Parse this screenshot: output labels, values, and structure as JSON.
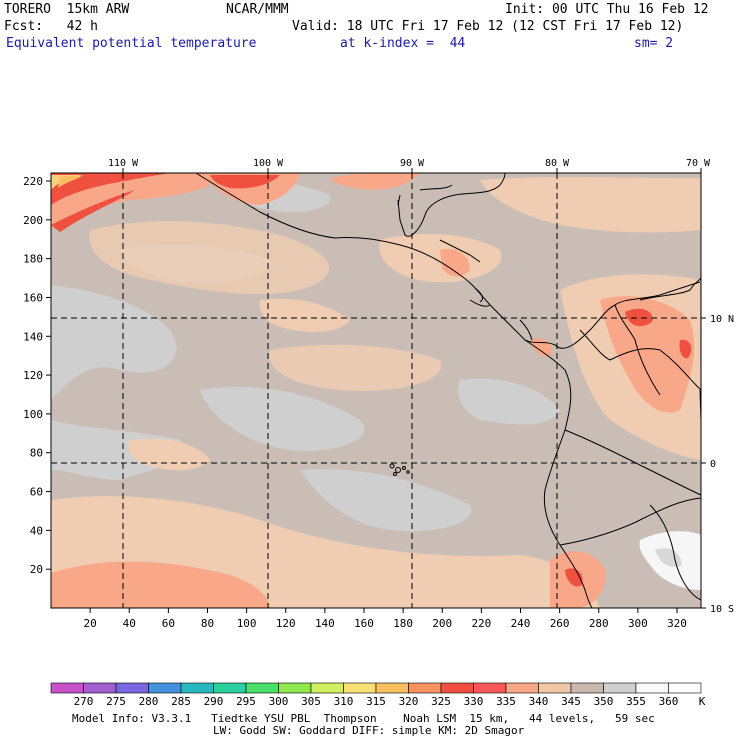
{
  "header": {
    "model": "TORERO  15km ARW",
    "org": "NCAR/MMM",
    "init": "Init: 00 UTC Thu 16 Feb 12",
    "fcst": "Fcst:   42 h",
    "valid": "Valid: 18 UTC Fri 17 Feb 12 (12 CST Fri 17 Feb 12)",
    "field": "Equivalent potential temperature",
    "level": "at k-index =  44",
    "smooth": "sm= 2"
  },
  "top_labels": [
    "110 W",
    "100 W",
    "90 W",
    "80 W",
    "70 W"
  ],
  "right_labels": [
    "10 N",
    "0",
    "10 S"
  ],
  "y_ticks": [
    "220",
    "200",
    "180",
    "160",
    "140",
    "120",
    "100",
    "80",
    "60",
    "40",
    "20"
  ],
  "x_ticks": [
    "20",
    "40",
    "60",
    "80",
    "100",
    "120",
    "140",
    "160",
    "180",
    "200",
    "220",
    "240",
    "260",
    "280",
    "300",
    "320"
  ],
  "legend": {
    "labels": [
      "270",
      "275",
      "280",
      "285",
      "290",
      "295",
      "300",
      "305",
      "310",
      "315",
      "320",
      "325",
      "330",
      "335",
      "340",
      "345",
      "350",
      "355",
      "360"
    ],
    "unit": "K",
    "colors": [
      "#c850c8",
      "#a060d0",
      "#7868e0",
      "#4890e0",
      "#28b8c0",
      "#28d0a0",
      "#48e068",
      "#90e850",
      "#d0f060",
      "#f8e070",
      "#f8c060",
      "#f89060",
      "#f05040",
      "#f85858",
      "#f8a888",
      "#f0c8a8",
      "#c8b8b0",
      "#d0d0d0",
      "#fafafa",
      "#ffffff"
    ]
  },
  "footer": {
    "line1": "Model Info: V3.3.1   Tiedtke YSU PBL  Thompson    Noah LSM  15 km,   44 levels,   59 sec",
    "line2": "LW: Godd SW: Goddard DIFF: simple KM: 2D Smagor"
  },
  "colors": {
    "base": "#c9bdb6",
    "light": "#f0cdb2",
    "grey": "#cfcfcf",
    "salmon": "#f8a888",
    "red": "#f05040",
    "yellow": "#f8d080",
    "white": "#f6f6f6"
  }
}
